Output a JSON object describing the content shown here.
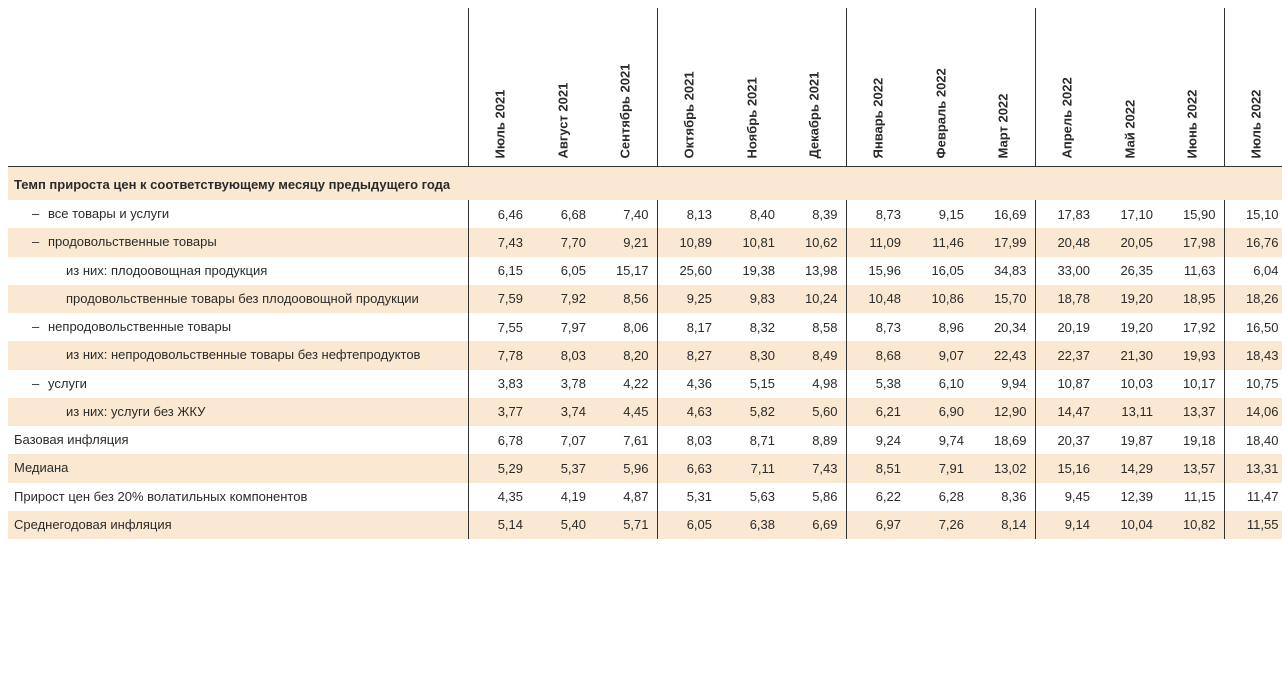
{
  "colors": {
    "row_shade": "#fbe8d2",
    "rule": "#333333",
    "text": "#2b2b2b",
    "bg": "#ffffff"
  },
  "typography": {
    "font_family": "Arial",
    "base_size_pt": 10,
    "header_bold": true
  },
  "months": [
    "Июль 2021",
    "Август 2021",
    "Сентябрь 2021",
    "Октябрь 2021",
    "Ноябрь 2021",
    "Декабрь 2021",
    "Январь 2022",
    "Февраль 2022",
    "Март 2022",
    "Апрель 2022",
    "Май 2022",
    "Июнь 2022",
    "Июль 2022"
  ],
  "section_title": "Темп прироста цен к соответствующему месяцу предыдущего года",
  "rows": [
    {
      "key": "r0",
      "label": "все товары и услуги",
      "indent": 1,
      "dash": true,
      "shade": false,
      "values": [
        "6,46",
        "6,68",
        "7,40",
        "8,13",
        "8,40",
        "8,39",
        "8,73",
        "9,15",
        "16,69",
        "17,83",
        "17,10",
        "15,90",
        "15,10"
      ]
    },
    {
      "key": "r1",
      "label": "продовольственные товары",
      "indent": 1,
      "dash": true,
      "shade": true,
      "values": [
        "7,43",
        "7,70",
        "9,21",
        "10,89",
        "10,81",
        "10,62",
        "11,09",
        "11,46",
        "17,99",
        "20,48",
        "20,05",
        "17,98",
        "16,76"
      ]
    },
    {
      "key": "r2",
      "label": "из них: плодоовощная продукция",
      "indent": 2,
      "dash": false,
      "shade": false,
      "values": [
        "6,15",
        "6,05",
        "15,17",
        "25,60",
        "19,38",
        "13,98",
        "15,96",
        "16,05",
        "34,83",
        "33,00",
        "26,35",
        "11,63",
        "6,04"
      ]
    },
    {
      "key": "r3",
      "label": "продовольственные товары без плодоовощной продукции",
      "indent": 2,
      "dash": false,
      "shade": true,
      "values": [
        "7,59",
        "7,92",
        "8,56",
        "9,25",
        "9,83",
        "10,24",
        "10,48",
        "10,86",
        "15,70",
        "18,78",
        "19,20",
        "18,95",
        "18,26"
      ]
    },
    {
      "key": "r4",
      "label": "непродовольственные товары",
      "indent": 1,
      "dash": true,
      "shade": false,
      "values": [
        "7,55",
        "7,97",
        "8,06",
        "8,17",
        "8,32",
        "8,58",
        "8,73",
        "8,96",
        "20,34",
        "20,19",
        "19,20",
        "17,92",
        "16,50"
      ]
    },
    {
      "key": "r5",
      "label": "из них: непродовольственные товары без нефтепродуктов",
      "indent": 2,
      "dash": false,
      "shade": true,
      "values": [
        "7,78",
        "8,03",
        "8,20",
        "8,27",
        "8,30",
        "8,49",
        "8,68",
        "9,07",
        "22,43",
        "22,37",
        "21,30",
        "19,93",
        "18,43"
      ]
    },
    {
      "key": "r6",
      "label": "услуги",
      "indent": 1,
      "dash": true,
      "shade": false,
      "values": [
        "3,83",
        "3,78",
        "4,22",
        "4,36",
        "5,15",
        "4,98",
        "5,38",
        "6,10",
        "9,94",
        "10,87",
        "10,03",
        "10,17",
        "10,75"
      ]
    },
    {
      "key": "r7",
      "label": "из них: услуги без ЖКУ",
      "indent": 2,
      "dash": false,
      "shade": true,
      "values": [
        "3,77",
        "3,74",
        "4,45",
        "4,63",
        "5,82",
        "5,60",
        "6,21",
        "6,90",
        "12,90",
        "14,47",
        "13,11",
        "13,37",
        "14,06"
      ]
    },
    {
      "key": "r8",
      "label": "Базовая инфляция",
      "indent": 0,
      "dash": false,
      "shade": false,
      "values": [
        "6,78",
        "7,07",
        "7,61",
        "8,03",
        "8,71",
        "8,89",
        "9,24",
        "9,74",
        "18,69",
        "20,37",
        "19,87",
        "19,18",
        "18,40"
      ]
    },
    {
      "key": "r9",
      "label": "Медиана",
      "indent": 0,
      "dash": false,
      "shade": true,
      "values": [
        "5,29",
        "5,37",
        "5,96",
        "6,63",
        "7,11",
        "7,43",
        "8,51",
        "7,91",
        "13,02",
        "15,16",
        "14,29",
        "13,57",
        "13,31"
      ]
    },
    {
      "key": "r10",
      "label": "Прирост цен без 20% волатильных компонентов",
      "indent": 0,
      "dash": false,
      "shade": false,
      "values": [
        "4,35",
        "4,19",
        "4,87",
        "5,31",
        "5,63",
        "5,86",
        "6,22",
        "6,28",
        "8,36",
        "9,45",
        "12,39",
        "11,15",
        "11,47"
      ]
    },
    {
      "key": "r11",
      "label": "Среднегодовая инфляция",
      "indent": 0,
      "dash": false,
      "shade": true,
      "values": [
        "5,14",
        "5,40",
        "5,71",
        "6,05",
        "6,38",
        "6,69",
        "6,97",
        "7,26",
        "8,14",
        "9,14",
        "10,04",
        "10,82",
        "11,55"
      ]
    }
  ]
}
